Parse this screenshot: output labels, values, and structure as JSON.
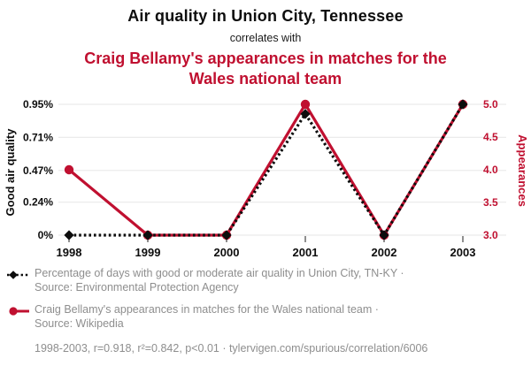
{
  "header": {
    "title": "Air quality in Union City, Tennessee",
    "connector": "correlates with",
    "subtitle": "Craig Bellamy's appearances in matches for the Wales national team"
  },
  "colors": {
    "accent_red": "#c01030",
    "series_black": "#0d0d0d",
    "gridline": "#ebebeb",
    "legend_gray": "#8e8e8e"
  },
  "chart_data": {
    "type": "line",
    "x": [
      1998,
      1999,
      2000,
      2001,
      2002,
      2003
    ],
    "series": [
      {
        "name": "Percentage of days with good or moderate air quality in Union City, TN-KY",
        "axis": "left",
        "color": "#0d0d0d",
        "line_style": "dotted",
        "marker": "diamond",
        "values": [
          0,
          0,
          0,
          0.88,
          0,
          0.95
        ]
      },
      {
        "name": "Craig Bellamy's appearances in matches for the Wales national team",
        "axis": "right",
        "color": "#c01030",
        "line_style": "solid",
        "marker": "circle",
        "values": [
          4,
          3,
          3,
          5,
          3,
          5
        ]
      }
    ],
    "left_axis": {
      "label": "Good air quality",
      "ticks": [
        "0.95%",
        "0.71%",
        "0.47%",
        "0.24%",
        "0%"
      ],
      "tick_values": [
        0.95,
        0.71,
        0.47,
        0.24,
        0
      ],
      "min": 0,
      "max": 0.95
    },
    "right_axis": {
      "label": "Appearances",
      "ticks": [
        "5.0",
        "4.5",
        "4.0",
        "3.5",
        "3.0"
      ],
      "tick_values": [
        5,
        4.5,
        4,
        3.5,
        3
      ],
      "min": 3,
      "max": 5
    },
    "grid": "horizontal-only",
    "legend_position": "bottom"
  },
  "legend": [
    {
      "label": "Percentage of days with good or moderate air quality in Union City, TN-KY ·",
      "source": "Source: Environmental Protection Agency"
    },
    {
      "label": "Craig Bellamy's appearances in matches for the Wales national team ·",
      "source": "Source: Wikipedia"
    }
  ],
  "footer": {
    "text": "1998-2003, r=0.918, r²=0.842, p<0.01 · tylervigen.com/spurious/correlation/6006"
  }
}
